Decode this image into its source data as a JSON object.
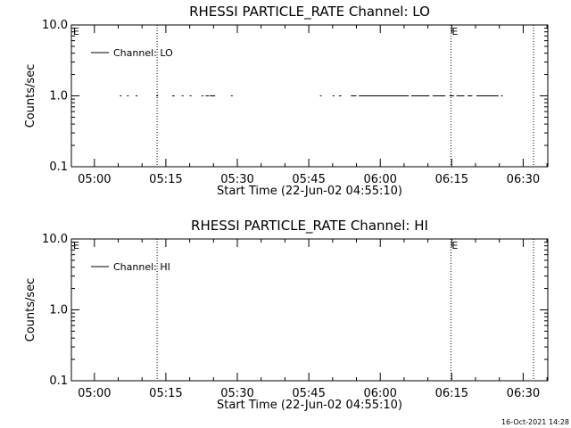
{
  "chart_data": [
    {
      "type": "line",
      "title": "RHESSI PARTICLE_RATE Channel: LO",
      "xlabel": "Start Time (22-Jun-02 04:55:10)",
      "ylabel": "Counts/sec",
      "y_scale": "log",
      "ylim": [
        0.1,
        10.0
      ],
      "y_ticks": [
        "0.1",
        "1.0",
        "10.0"
      ],
      "xlim": [
        "04:55:10",
        "06:35:10"
      ],
      "x_ticks": [
        "05:00",
        "05:15",
        "05:30",
        "05:45",
        "06:00",
        "06:15",
        "06:30"
      ],
      "legend": {
        "placement": "top-left",
        "label": "Channel: LO"
      },
      "markers": [
        {
          "time": "05:13:10",
          "label": ""
        },
        {
          "time": "06:14:50",
          "label": "E"
        },
        {
          "time": "06:32:10",
          "label": ""
        }
      ],
      "corner_label": "E",
      "grid": false,
      "series": [
        {
          "name": "Channel: LO",
          "value": 1.0,
          "segments": [
            [
              "05:05:20",
              "05:05:30"
            ],
            [
              "05:06:50",
              "05:07:00"
            ],
            [
              "05:08:40",
              "05:08:50"
            ],
            [
              "05:13:00",
              "05:13:10"
            ],
            [
              "05:16:20",
              "05:16:50"
            ],
            [
              "05:18:20",
              "05:18:40"
            ],
            [
              "05:20:00",
              "05:20:20"
            ],
            [
              "05:22:30",
              "05:22:40"
            ],
            [
              "05:23:20",
              "05:24:00"
            ],
            [
              "05:24:10",
              "05:25:20"
            ],
            [
              "05:28:40",
              "05:29:00"
            ],
            [
              "05:47:20",
              "05:47:40"
            ],
            [
              "05:50:00",
              "05:50:20"
            ],
            [
              "05:51:20",
              "05:51:50"
            ],
            [
              "05:53:50",
              "05:55:00"
            ],
            [
              "05:55:30",
              "06:06:00"
            ],
            [
              "06:06:30",
              "06:10:20"
            ],
            [
              "06:11:00",
              "06:13:40"
            ],
            [
              "06:14:30",
              "06:15:30"
            ],
            [
              "06:16:00",
              "06:17:40"
            ],
            [
              "06:18:20",
              "06:19:20"
            ],
            [
              "06:20:10",
              "06:24:50"
            ],
            [
              "06:25:20",
              "06:25:40"
            ]
          ]
        }
      ]
    },
    {
      "type": "line",
      "title": "RHESSI PARTICLE_RATE Channel: HI",
      "xlabel": "Start Time (22-Jun-02 04:55:10)",
      "ylabel": "Counts/sec",
      "y_scale": "log",
      "ylim": [
        0.1,
        10.0
      ],
      "y_ticks": [
        "0.1",
        "1.0",
        "10.0"
      ],
      "xlim": [
        "04:55:10",
        "06:35:10"
      ],
      "x_ticks": [
        "05:00",
        "05:15",
        "05:30",
        "05:45",
        "06:00",
        "06:15",
        "06:30"
      ],
      "legend": {
        "placement": "top-left",
        "label": "Channel: HI"
      },
      "markers": [
        {
          "time": "05:13:10",
          "label": ""
        },
        {
          "time": "06:14:50",
          "label": "E"
        },
        {
          "time": "06:32:10",
          "label": ""
        }
      ],
      "corner_label": "E",
      "grid": false,
      "series": [
        {
          "name": "Channel: HI",
          "value": 1.0,
          "segments": []
        }
      ]
    }
  ],
  "footer": {
    "timestamp": "16-Oct-2021 14:28"
  }
}
